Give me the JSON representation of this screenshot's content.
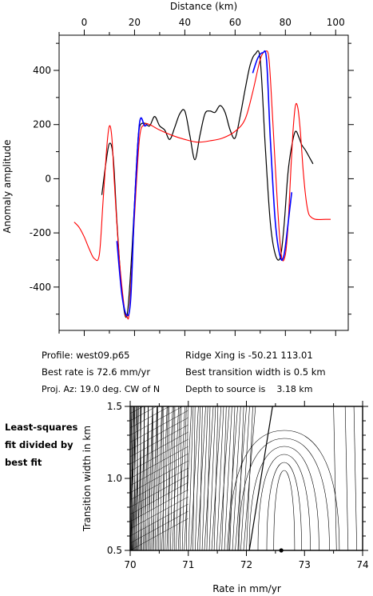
{
  "info": {
    "profile": "Profile: west09.p65",
    "best_rate": "Best rate is 72.6 mm/yr",
    "proj_az": "Proj. Az: 19.0 deg. CW of N",
    "ridge_xing": "Ridge Xing is -50.21 113.01",
    "best_width": "Best transition width is 0.5 km",
    "depth": "Depth to source is    3.18 km"
  },
  "side_note": [
    "Least-squares",
    "fit divided by",
    "best fit"
  ],
  "chart_data": [
    {
      "type": "line",
      "xlabel": "Distance (km)",
      "ylabel": "Anomaly amplitude",
      "xlim": [
        -10,
        105
      ],
      "ylim": [
        -560,
        530
      ],
      "x_ticks": [
        0,
        20,
        40,
        60,
        80,
        100
      ],
      "y_ticks": [
        -400,
        -200,
        0,
        200,
        400
      ],
      "grid": false,
      "series": [
        {
          "color": "#000000",
          "x": [
            7,
            8.5,
            10,
            11.5,
            13,
            15,
            17,
            19,
            21,
            22,
            24,
            26,
            28,
            30,
            32,
            34,
            36,
            38,
            40,
            42,
            44,
            46,
            48,
            50,
            52,
            54,
            56,
            58,
            60,
            62,
            64,
            66,
            68,
            70,
            72,
            74,
            76,
            78,
            79.5,
            81,
            82.5,
            84,
            85.5,
            86.5,
            88,
            89.5,
            91
          ],
          "y": [
            -60,
            50,
            130,
            80,
            -160,
            -420,
            -505,
            -260,
            90,
            190,
            205,
            195,
            230,
            195,
            180,
            145,
            190,
            240,
            250,
            160,
            70,
            160,
            240,
            250,
            245,
            270,
            245,
            180,
            150,
            230,
            330,
            420,
            460,
            440,
            120,
            -160,
            -280,
            -290,
            -170,
            20,
            120,
            175,
            150,
            125,
            105,
            80,
            55
          ]
        },
        {
          "color": "#ff0000",
          "x": [
            -4,
            -2,
            0,
            2,
            4,
            6,
            7.5,
            9,
            10,
            11,
            12,
            14,
            16,
            17,
            18,
            20,
            22,
            24,
            26,
            28,
            30,
            35,
            40,
            45,
            50,
            55,
            60,
            64,
            67,
            70,
            72,
            73.5,
            75,
            77,
            78.5,
            80,
            81,
            82,
            83,
            84,
            85,
            86,
            87,
            88,
            89,
            90,
            92,
            96,
            98
          ],
          "y": [
            -160,
            -180,
            -215,
            -260,
            -295,
            -280,
            -80,
            120,
            195,
            150,
            -20,
            -300,
            -480,
            -510,
            -480,
            -140,
            150,
            200,
            200,
            190,
            180,
            160,
            145,
            135,
            140,
            150,
            175,
            220,
            320,
            440,
            470,
            440,
            210,
            -120,
            -290,
            -280,
            -180,
            0,
            170,
            270,
            260,
            170,
            40,
            -60,
            -120,
            -140,
            -150,
            -150,
            -150
          ]
        },
        {
          "color": "#0000ff",
          "x": [
            13,
            15,
            17,
            18.5,
            20,
            22,
            24,
            25
          ],
          "y": [
            -230,
            -430,
            -505,
            -440,
            -100,
            205,
            195,
            200
          ]
        },
        {
          "color": "#0000ff",
          "x": [
            67,
            69,
            71,
            72.5,
            74,
            76,
            78,
            79.5,
            81,
            82.5
          ],
          "y": [
            390,
            445,
            465,
            440,
            150,
            -160,
            -290,
            -280,
            -170,
            -50
          ]
        }
      ]
    },
    {
      "type": "contour",
      "xlabel": "Rate in mm/yr",
      "ylabel": "Transition width in km",
      "xlim": [
        70,
        74
      ],
      "ylim": [
        0.5,
        1.5
      ],
      "x_ticks": [
        70,
        71,
        72,
        73,
        74
      ],
      "y_ticks": [
        0.5,
        1.0,
        1.5
      ],
      "best_fit": {
        "x": 72.6,
        "y": 0.5
      }
    }
  ]
}
